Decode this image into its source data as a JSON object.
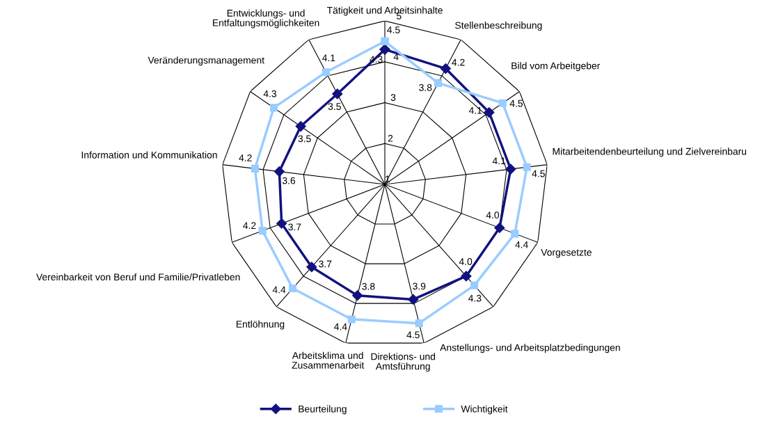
{
  "chart_data": {
    "type": "radar",
    "categories": [
      "Tätigkeit und Arbeitsinhalte",
      "Stellenbeschreibung",
      "Bild vom Arbeitgeber",
      "Mitarbeitendenbeurteilung und Zielvereinbaru",
      "Vorgesetzte",
      "Anstellungs- und Arbeitsplatzbedingungen",
      "Direktions- und Amtsführung",
      "Arbeitsklima und Zusammenarbeit",
      "Entlöhnung",
      "Vereinbarkeit von Beruf und Familie/Privatleben",
      "Information und Kommunikation",
      "Veränderungsmanagement",
      "Entwicklungs- und Entfaltungsmöglichkeiten"
    ],
    "ylim": [
      1,
      5
    ],
    "yticks": [
      1,
      2,
      3,
      4,
      5
    ],
    "grid": true,
    "legend": "bottom",
    "series": [
      {
        "name": "Beurteilung",
        "color": "#12127f",
        "marker": "diamond",
        "values": [
          4.3,
          4.2,
          4.1,
          4.1,
          4.0,
          4.0,
          3.9,
          3.8,
          3.7,
          3.7,
          3.6,
          3.5,
          3.5
        ],
        "value_labels": [
          "4.3",
          "4.2",
          "4.1",
          "4.1",
          "4.0",
          "4.0",
          "3.9",
          "3.8",
          "3.7",
          "3.7",
          "3.6",
          "3.5",
          "3.5"
        ]
      },
      {
        "name": "Wichtigkeit",
        "color": "#99ccff",
        "marker": "square",
        "values": [
          4.5,
          3.8,
          4.5,
          4.5,
          4.4,
          4.3,
          4.5,
          4.4,
          4.4,
          4.2,
          4.2,
          4.3,
          4.1
        ],
        "value_labels": [
          "4.5",
          "3.8",
          "4.5",
          "4.5",
          "4.4",
          "4.3",
          "4.5",
          "4.4",
          "4.4",
          "4.2",
          "4.2",
          "4.3",
          "4.1"
        ]
      }
    ]
  }
}
